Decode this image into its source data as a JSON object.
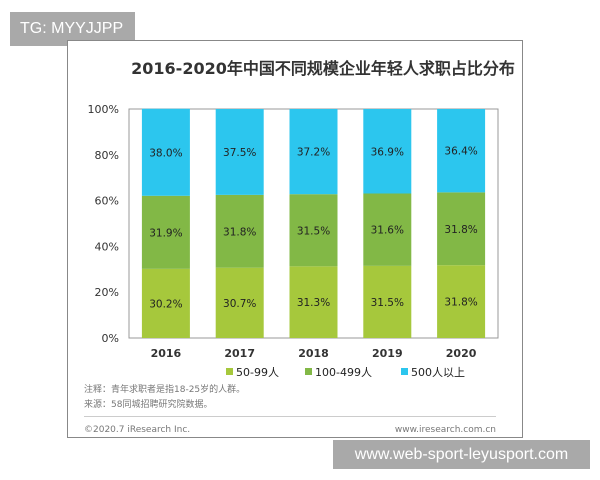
{
  "watermark_top": "TG: MYYJJPP",
  "watermark_bottom": "www.web-sport-leyusport.com",
  "chart_data": {
    "type": "bar",
    "stacked": true,
    "title": "2016-2020年中国不同规模企业年轻人求职占比分布",
    "categories": [
      "2016",
      "2017",
      "2018",
      "2019",
      "2020"
    ],
    "ylim": [
      0,
      100
    ],
    "yticks": [
      "0%",
      "20%",
      "40%",
      "60%",
      "80%",
      "100%"
    ],
    "legend_position": "bottom",
    "series": [
      {
        "name": "50-99人",
        "color": "#a6c83c",
        "values": [
          30.2,
          30.7,
          31.3,
          31.5,
          31.8
        ],
        "labels": [
          "30.2%",
          "30.7%",
          "31.3%",
          "31.5%",
          "31.8%"
        ]
      },
      {
        "name": "100-499人",
        "color": "#82b846",
        "values": [
          31.9,
          31.8,
          31.5,
          31.6,
          31.8
        ],
        "labels": [
          "31.9%",
          "31.8%",
          "31.5%",
          "31.6%",
          "31.8%"
        ]
      },
      {
        "name": "500人以上",
        "color": "#2cc6ee",
        "values": [
          38.0,
          37.5,
          37.2,
          36.9,
          36.4
        ],
        "labels": [
          "38.0%",
          "37.5%",
          "37.2%",
          "36.9%",
          "36.4%"
        ]
      }
    ]
  },
  "notes": {
    "note": "注释：青年求职者是指18-25岁的人群。",
    "source": "来源：58同城招聘研究院数据。"
  },
  "footer": {
    "copyright": "©2020.7 iResearch Inc.",
    "site": "www.iresearch.com.cn"
  }
}
